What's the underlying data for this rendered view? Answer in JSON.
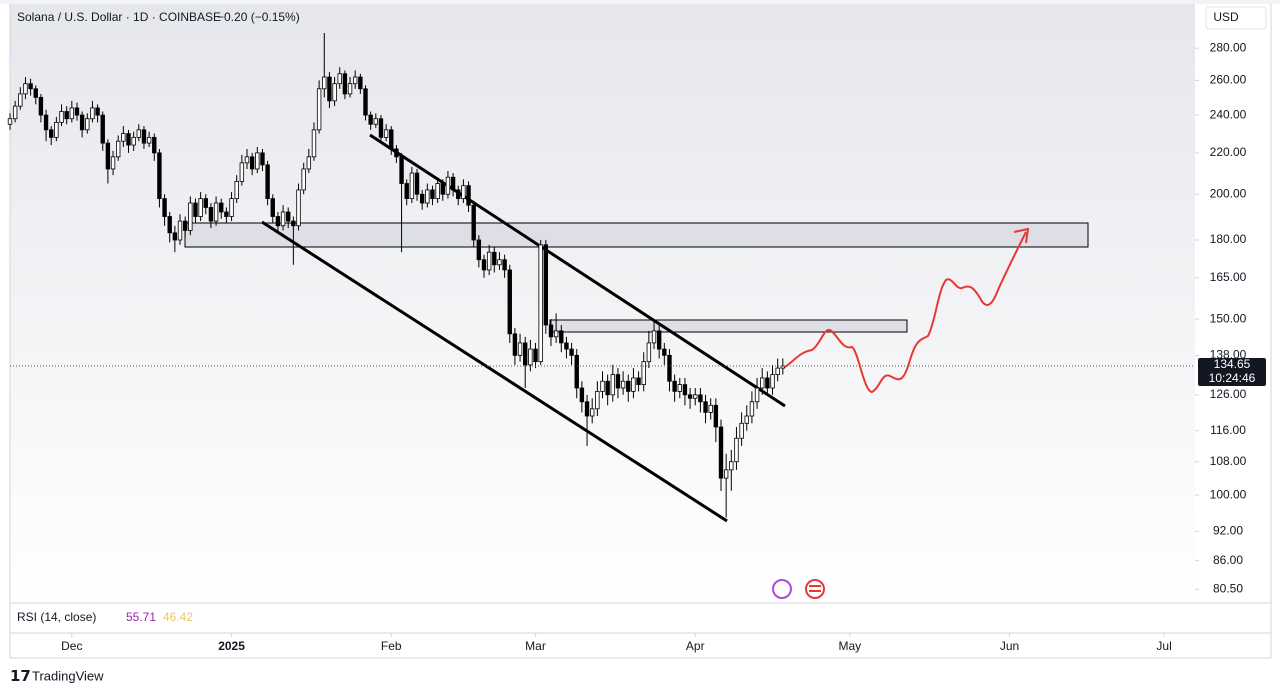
{
  "chart_data": {
    "type": "candlestick",
    "title": "Solana / U.S. Dollar · 1D · COINBASE",
    "change": "−0.20 (−0.15%)",
    "currency": "USD",
    "log_scale": true,
    "up_color": "#ffffff",
    "down_color": "#000000",
    "wick_color": "#000000",
    "ylim": [
      78,
      310
    ],
    "yticks": [
      {
        "value": 280,
        "label": "280.00"
      },
      {
        "value": 260,
        "label": "260.00"
      },
      {
        "value": 240,
        "label": "240.00"
      },
      {
        "value": 220,
        "label": "220.00"
      },
      {
        "value": 200,
        "label": "200.00"
      },
      {
        "value": 180,
        "label": "180.00"
      },
      {
        "value": 165,
        "label": "165.00"
      },
      {
        "value": 150,
        "label": "150.00"
      },
      {
        "value": 138,
        "label": "138.00"
      },
      {
        "value": 126,
        "label": "126.00"
      },
      {
        "value": 116,
        "label": "116.00"
      },
      {
        "value": 108,
        "label": "108.00"
      },
      {
        "value": 100,
        "label": "100.00"
      },
      {
        "value": 92,
        "label": "92.00"
      },
      {
        "value": 86,
        "label": "86.00"
      },
      {
        "value": 80.5,
        "label": "80.50"
      }
    ],
    "xlim": [
      0,
      230
    ],
    "xticks": [
      {
        "value": 12,
        "label": "Dec"
      },
      {
        "value": 43,
        "label": "2025"
      },
      {
        "value": 74,
        "label": "Feb"
      },
      {
        "value": 102,
        "label": "Mar"
      },
      {
        "value": 133,
        "label": "Apr"
      },
      {
        "value": 163,
        "label": "May"
      },
      {
        "value": 194,
        "label": "Jun"
      },
      {
        "value": 224,
        "label": "Jul"
      }
    ],
    "last_price": {
      "value": 134.65,
      "label": "134.65",
      "countdown": "10:24:46"
    },
    "rsi": {
      "label": "RSI (14, close)",
      "values": [
        {
          "value": 55.71,
          "color": "#9c27b0"
        },
        {
          "value": 46.42,
          "color": "#e8c96a"
        }
      ]
    },
    "brand": "TradingView",
    "candles": [
      [
        235,
        241,
        232,
        238
      ],
      [
        238,
        248,
        236,
        245
      ],
      [
        245,
        256,
        243,
        252
      ],
      [
        252,
        262,
        249,
        258
      ],
      [
        258,
        261,
        251,
        255
      ],
      [
        255,
        257,
        246,
        250
      ],
      [
        250,
        252,
        236,
        240
      ],
      [
        240,
        243,
        226,
        232
      ],
      [
        232,
        234,
        224,
        228
      ],
      [
        228,
        239,
        226,
        236
      ],
      [
        236,
        246,
        234,
        242
      ],
      [
        242,
        245,
        235,
        238
      ],
      [
        238,
        248,
        236,
        244
      ],
      [
        244,
        247,
        237,
        240
      ],
      [
        240,
        242,
        228,
        232
      ],
      [
        232,
        241,
        230,
        238
      ],
      [
        238,
        248,
        236,
        244
      ],
      [
        244,
        246,
        236,
        240
      ],
      [
        240,
        242,
        221,
        225
      ],
      [
        225,
        227,
        205,
        212
      ],
      [
        212,
        221,
        209,
        218
      ],
      [
        218,
        229,
        216,
        226
      ],
      [
        226,
        234,
        223,
        230
      ],
      [
        230,
        232,
        220,
        224
      ],
      [
        224,
        231,
        221,
        228
      ],
      [
        228,
        235,
        226,
        232
      ],
      [
        232,
        234,
        222,
        225
      ],
      [
        225,
        231,
        223,
        228
      ],
      [
        228,
        230,
        216,
        220
      ],
      [
        220,
        222,
        194,
        198
      ],
      [
        198,
        200,
        186,
        190
      ],
      [
        190,
        192,
        179,
        183
      ],
      [
        183,
        186,
        175,
        180
      ],
      [
        180,
        191,
        178,
        188
      ],
      [
        188,
        190,
        181,
        184
      ],
      [
        184,
        199,
        182,
        196
      ],
      [
        196,
        198,
        187,
        190
      ],
      [
        190,
        201,
        188,
        198
      ],
      [
        198,
        200,
        191,
        194
      ],
      [
        194,
        196,
        185,
        188
      ],
      [
        188,
        199,
        186,
        196
      ],
      [
        196,
        198,
        189,
        192
      ],
      [
        192,
        194,
        187,
        190
      ],
      [
        190,
        201,
        188,
        198
      ],
      [
        198,
        209,
        196,
        206
      ],
      [
        206,
        219,
        204,
        215
      ],
      [
        215,
        222,
        212,
        218
      ],
      [
        218,
        220,
        209,
        212
      ],
      [
        212,
        223,
        210,
        220
      ],
      [
        220,
        222,
        211,
        214
      ],
      [
        214,
        216,
        195,
        198
      ],
      [
        198,
        200,
        187,
        190
      ],
      [
        190,
        192,
        183,
        186
      ],
      [
        186,
        195,
        184,
        192
      ],
      [
        192,
        194,
        185,
        188
      ],
      [
        188,
        190,
        170,
        186
      ],
      [
        186,
        205,
        184,
        202
      ],
      [
        202,
        215,
        200,
        212
      ],
      [
        212,
        222,
        210,
        218
      ],
      [
        218,
        236,
        216,
        232
      ],
      [
        232,
        260,
        230,
        255
      ],
      [
        255,
        290,
        250,
        262
      ],
      [
        262,
        265,
        244,
        248
      ],
      [
        248,
        262,
        245,
        258
      ],
      [
        258,
        268,
        255,
        264
      ],
      [
        264,
        266,
        249,
        252
      ],
      [
        252,
        262,
        250,
        258
      ],
      [
        258,
        266,
        255,
        262
      ],
      [
        262,
        264,
        252,
        255
      ],
      [
        255,
        257,
        237,
        240
      ],
      [
        240,
        242,
        232,
        235
      ],
      [
        235,
        241,
        233,
        238
      ],
      [
        238,
        240,
        225,
        228
      ],
      [
        228,
        235,
        226,
        232
      ],
      [
        232,
        234,
        219,
        222
      ],
      [
        222,
        224,
        215,
        218
      ],
      [
        218,
        220,
        175,
        205
      ],
      [
        205,
        207,
        195,
        198
      ],
      [
        198,
        213,
        196,
        210
      ],
      [
        210,
        212,
        197,
        200
      ],
      [
        200,
        202,
        193,
        196
      ],
      [
        196,
        205,
        194,
        202
      ],
      [
        202,
        204,
        195,
        198
      ],
      [
        198,
        208,
        196,
        205
      ],
      [
        205,
        207,
        197,
        200
      ],
      [
        200,
        211,
        198,
        208
      ],
      [
        208,
        210,
        199,
        202
      ],
      [
        202,
        204,
        195,
        198
      ],
      [
        198,
        207,
        196,
        204
      ],
      [
        204,
        206,
        192,
        195
      ],
      [
        195,
        197,
        177,
        180
      ],
      [
        180,
        182,
        169,
        172
      ],
      [
        172,
        174,
        165,
        168
      ],
      [
        168,
        178,
        166,
        175
      ],
      [
        175,
        177,
        167,
        170
      ],
      [
        170,
        175,
        168,
        172
      ],
      [
        172,
        174,
        165,
        168
      ],
      [
        168,
        170,
        142,
        145
      ],
      [
        145,
        147,
        135,
        138
      ],
      [
        138,
        145,
        136,
        142
      ],
      [
        142,
        144,
        128,
        135
      ],
      [
        135,
        143,
        133,
        140
      ],
      [
        140,
        142,
        134,
        136
      ],
      [
        136,
        180,
        135,
        178
      ],
      [
        178,
        180,
        145,
        148
      ],
      [
        148,
        150,
        141,
        144
      ],
      [
        144,
        152,
        142,
        146
      ],
      [
        146,
        148,
        139,
        142
      ],
      [
        142,
        144,
        137,
        140
      ],
      [
        140,
        142,
        135,
        138
      ],
      [
        138,
        140,
        125,
        128
      ],
      [
        128,
        130,
        121,
        124
      ],
      [
        124,
        126,
        112,
        120
      ],
      [
        120,
        125,
        118,
        122
      ],
      [
        122,
        130,
        120,
        127
      ],
      [
        127,
        133,
        125,
        130
      ],
      [
        130,
        132,
        123,
        126
      ],
      [
        126,
        135,
        124,
        132
      ],
      [
        132,
        134,
        125,
        128
      ],
      [
        128,
        133,
        126,
        130
      ],
      [
        130,
        132,
        124,
        127
      ],
      [
        127,
        134,
        125,
        131
      ],
      [
        131,
        133,
        127,
        129
      ],
      [
        129,
        139,
        127,
        136
      ],
      [
        136,
        146,
        134,
        142
      ],
      [
        142,
        149,
        140,
        146
      ],
      [
        146,
        148,
        137,
        140
      ],
      [
        140,
        142,
        135,
        138
      ],
      [
        138,
        140,
        127,
        130
      ],
      [
        130,
        132,
        124,
        127
      ],
      [
        127,
        131,
        125,
        129
      ],
      [
        129,
        131,
        123,
        126
      ],
      [
        126,
        128,
        122,
        125
      ],
      [
        125,
        128,
        123,
        126
      ],
      [
        126,
        128,
        121,
        124
      ],
      [
        124,
        126,
        118,
        121
      ],
      [
        121,
        125,
        119,
        123
      ],
      [
        123,
        125,
        113,
        117
      ],
      [
        117,
        119,
        101,
        104
      ],
      [
        104,
        110,
        95,
        106
      ],
      [
        106,
        111,
        101,
        108
      ],
      [
        108,
        117,
        106,
        114
      ],
      [
        114,
        121,
        112,
        118
      ],
      [
        118,
        123,
        116,
        120
      ],
      [
        120,
        127,
        118,
        124
      ],
      [
        124,
        131,
        122,
        128
      ],
      [
        128,
        134,
        126,
        131
      ],
      [
        131,
        133,
        126,
        128
      ],
      [
        128,
        135,
        126,
        132
      ],
      [
        132,
        137,
        130,
        134
      ],
      [
        134,
        137,
        132,
        134.65
      ]
    ]
  }
}
